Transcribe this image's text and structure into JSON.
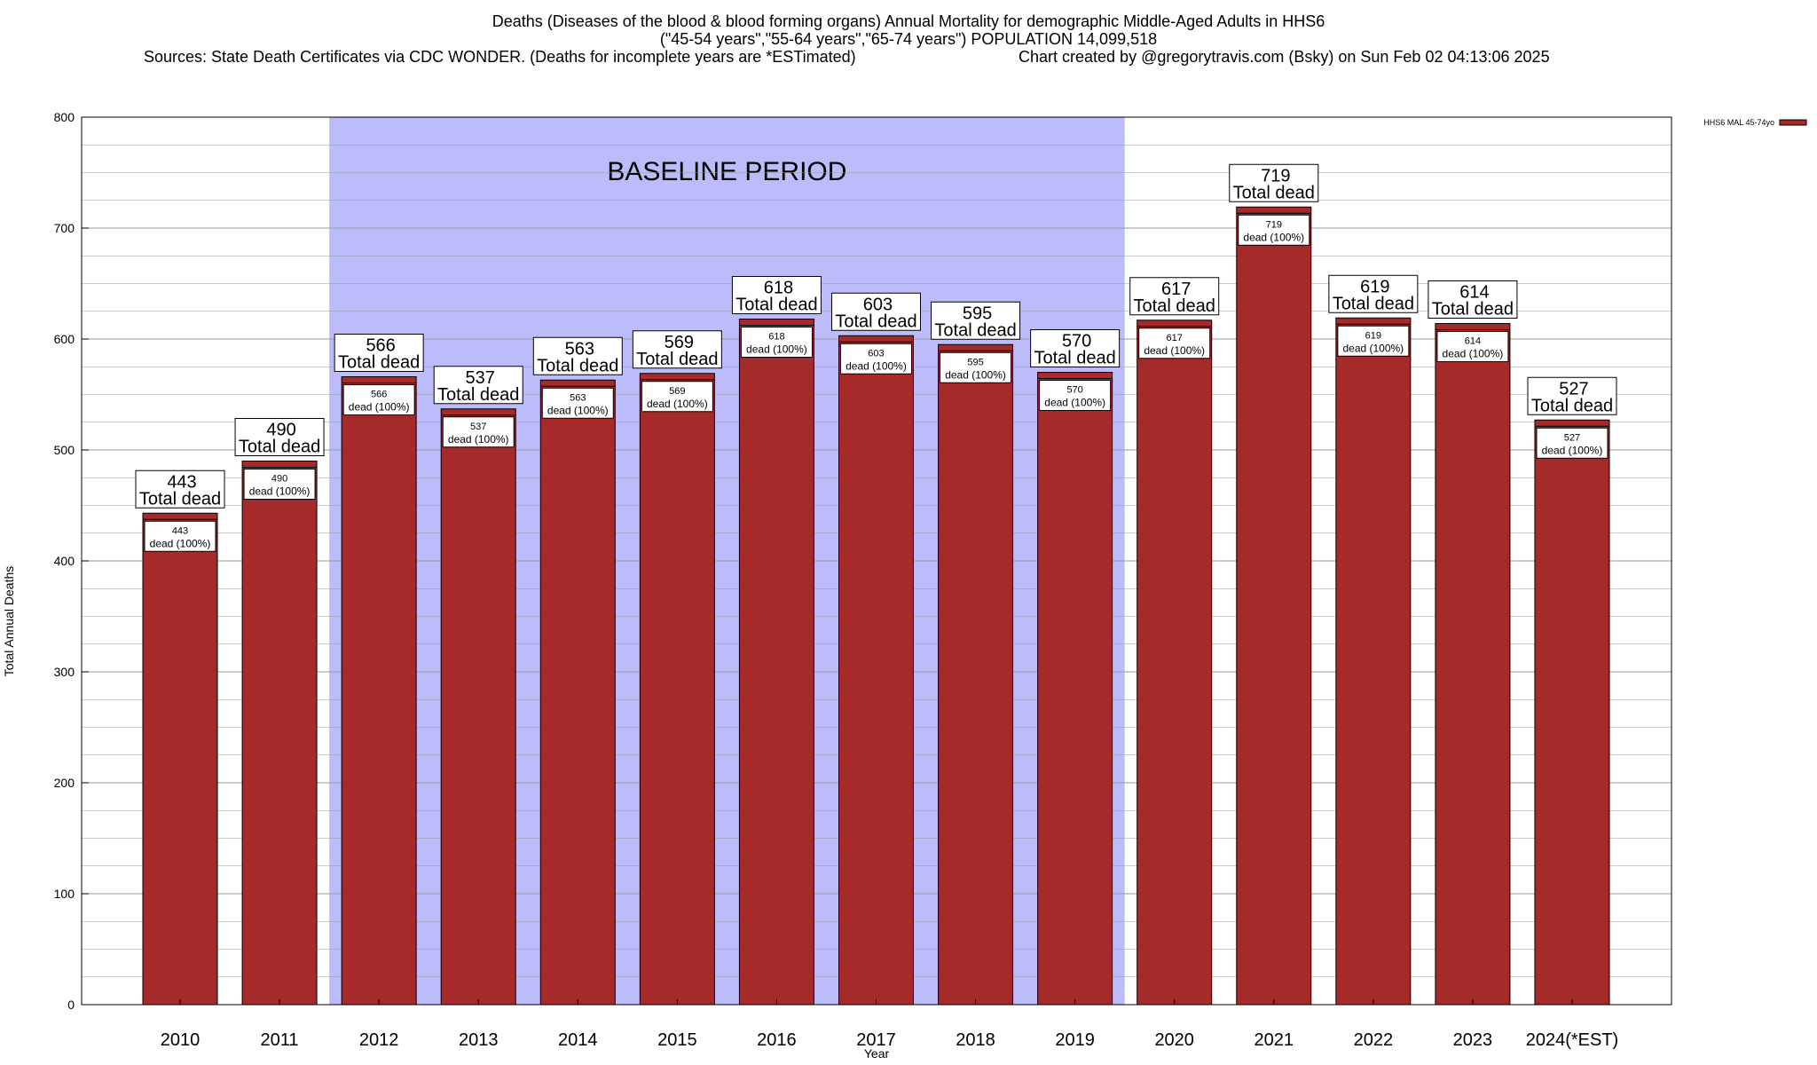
{
  "header": {
    "title_line1": "Deaths (Diseases of the blood & blood forming organs) Annual Mortality for demographic Middle-Aged Adults in HHS6",
    "title_line2": "(\"45-54 years\",\"55-64 years\",\"65-74 years\") POPULATION 14,099,518",
    "sources": "Sources: State Death Certificates via CDC WONDER. (Deaths for incomplete years are *ESTimated)",
    "credit": "Chart created by @gregorytravis.com (Bsky) on Sun Feb 02 04:13:06 2025"
  },
  "chart_data": {
    "type": "bar",
    "categories": [
      "2010",
      "2011",
      "2012",
      "2013",
      "2014",
      "2015",
      "2016",
      "2017",
      "2018",
      "2019",
      "2020",
      "2021",
      "2022",
      "2023",
      "2024(*EST)"
    ],
    "series": [
      {
        "name": "HHS6 MAL 45-74yo",
        "values": [
          443,
          490,
          566,
          537,
          563,
          569,
          618,
          603,
          595,
          570,
          617,
          719,
          619,
          614,
          527
        ],
        "color": "#a52a2a"
      }
    ],
    "xlabel": "Year",
    "ylabel": "Total Annual Deaths",
    "ylim": [
      0,
      800
    ],
    "yticks": [
      0,
      100,
      200,
      300,
      400,
      500,
      600,
      700,
      800
    ],
    "grid": true,
    "legend": "top-right",
    "baseline_region": {
      "label": "BASELINE PERIOD",
      "from": "2012",
      "to": "2019",
      "color": "#bcbcfb"
    },
    "label_top_text": "Total dead",
    "label_inner_text": "dead (100%)"
  }
}
